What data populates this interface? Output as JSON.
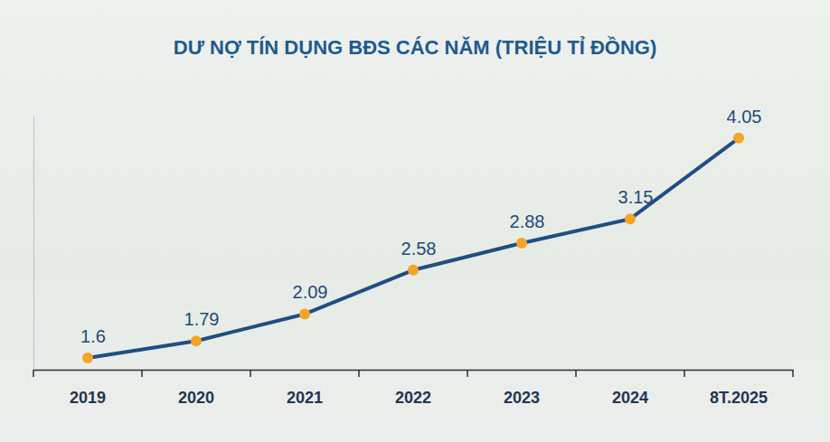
{
  "chart_data": {
    "type": "line",
    "title": "DƯ NỢ TÍN DỤNG BĐS CÁC NĂM (TRIỆU TỈ ĐỒNG)",
    "categories": [
      "2019",
      "2020",
      "2021",
      "2022",
      "2023",
      "2024",
      "8T.2025"
    ],
    "values": [
      1.6,
      1.79,
      2.09,
      2.58,
      2.88,
      3.15,
      4.05
    ],
    "color": "#1f4f82",
    "marker": "circle",
    "ylim": [
      1.47,
      4.3
    ],
    "data_labels": true,
    "tick_labels": "x",
    "grid": false
  }
}
